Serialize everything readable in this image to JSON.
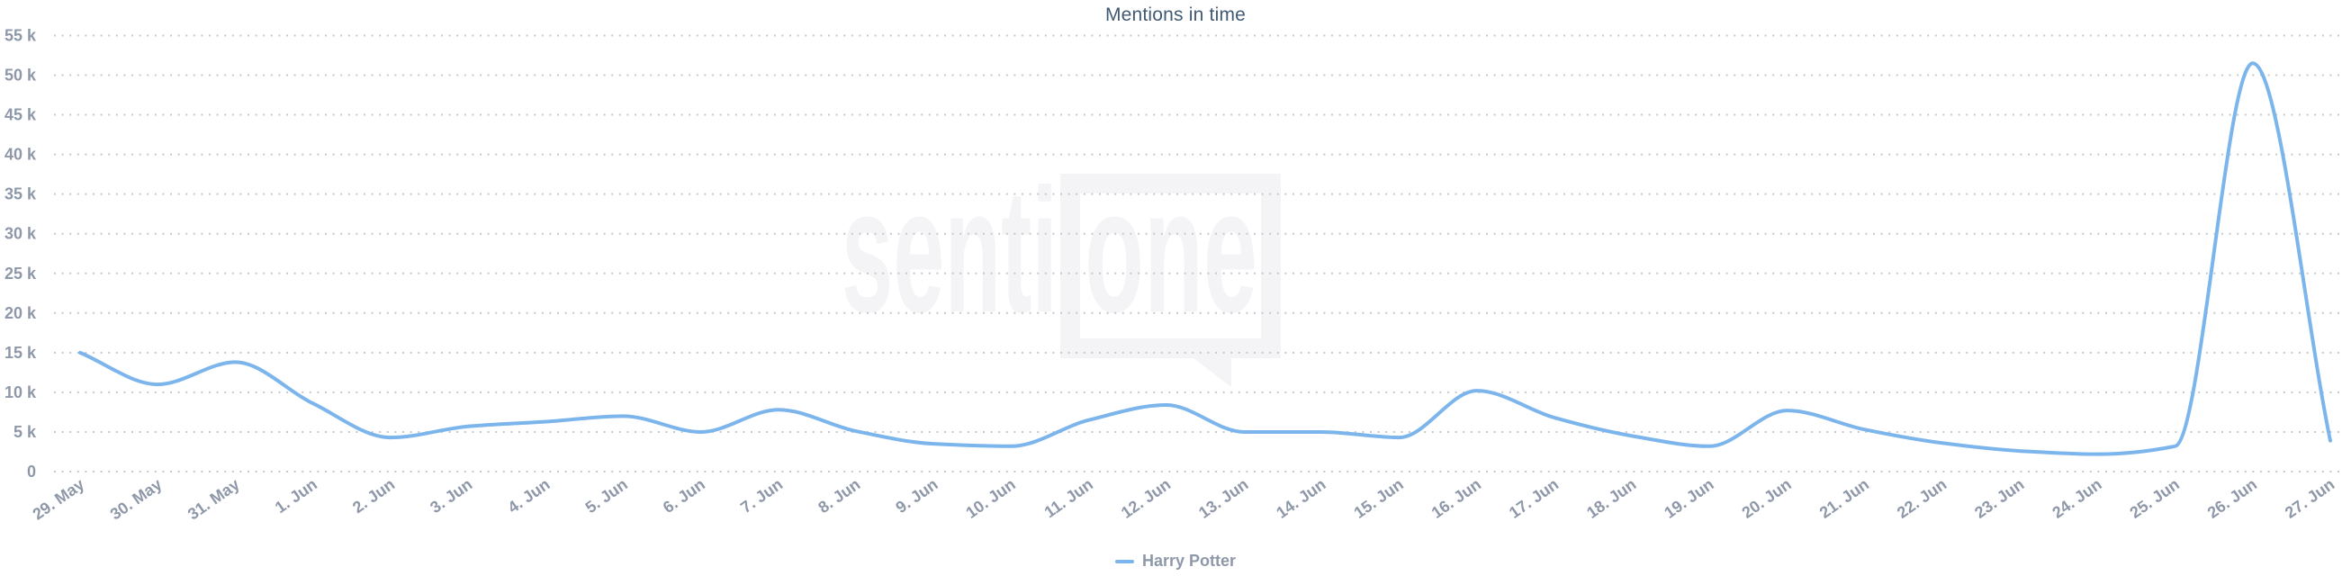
{
  "chart_data": {
    "type": "line",
    "title": "Mentions in time",
    "categories": [
      "29. May",
      "30. May",
      "31. May",
      "1. Jun",
      "2. Jun",
      "3. Jun",
      "4. Jun",
      "5. Jun",
      "6. Jun",
      "7. Jun",
      "8. Jun",
      "9. Jun",
      "10. Jun",
      "11. Jun",
      "12. Jun",
      "13. Jun",
      "14. Jun",
      "15. Jun",
      "16. Jun",
      "17. Jun",
      "18. Jun",
      "19. Jun",
      "20. Jun",
      "21. Jun",
      "22. Jun",
      "23. Jun",
      "24. Jun",
      "25. Jun",
      "26. Jun",
      "27. Jun"
    ],
    "series": [
      {
        "name": "Harry Potter",
        "color": "#7cb5ec",
        "values": [
          15000,
          11000,
          13800,
          8600,
          4300,
          5700,
          6300,
          7000,
          5000,
          7800,
          5100,
          3500,
          3200,
          6500,
          8400,
          5000,
          5000,
          4300,
          10200,
          6800,
          4500,
          3200,
          7700,
          5300,
          3600,
          2600,
          2200,
          3200,
          51500,
          3900
        ]
      }
    ],
    "ylabel": "",
    "xlabel": "",
    "ylim": [
      0,
      55000
    ],
    "y_tick_step": 5000,
    "y_ticks": [
      "0",
      "5 k",
      "10 k",
      "15 k",
      "20 k",
      "25 k",
      "30 k",
      "35 k",
      "40 k",
      "45 k",
      "50 k",
      "55 k"
    ],
    "grid": "horizontal-dotted",
    "x_label_rotation": -35,
    "legend_position": "bottom-center",
    "colors": {
      "title": "#415a74",
      "axis_labels": "#8e98a9",
      "gridlines": "#c6c8cb",
      "background": "#ffffff",
      "watermark": "#f4f4f6"
    },
    "watermark": {
      "part1": "senti",
      "part2": "one"
    }
  }
}
